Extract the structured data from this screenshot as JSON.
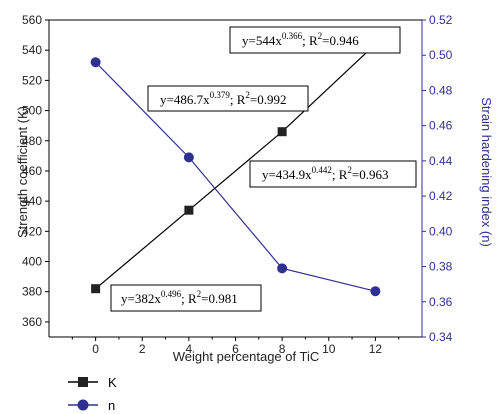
{
  "chart_data": {
    "type": "line",
    "xlabel": "Weight percentage of TiC",
    "ylabel_left": "Strength coefficient (K)",
    "ylabel_right": "Strain hardening index (n)",
    "x": [
      0,
      4,
      8,
      12
    ],
    "xlim": [
      -2,
      14
    ],
    "xticks": [
      "0",
      "2",
      "4",
      "6",
      "8",
      "10",
      "12"
    ],
    "ylim_left": [
      350,
      560
    ],
    "yticks_left": [
      "360",
      "380",
      "400",
      "420",
      "440",
      "460",
      "480",
      "500",
      "520",
      "540",
      "560"
    ],
    "ylim_right": [
      0.34,
      0.52
    ],
    "yticks_right": [
      "0.34",
      "0.36",
      "0.38",
      "0.40",
      "0.42",
      "0.44",
      "0.46",
      "0.48",
      "0.50",
      "0.52"
    ],
    "series": [
      {
        "name": "K",
        "axis": "left",
        "marker": "square",
        "color": "#000000",
        "values": [
          382,
          434,
          486,
          544
        ]
      },
      {
        "name": "n",
        "axis": "right",
        "marker": "circle",
        "color": "#2e3192",
        "values": [
          0.496,
          0.442,
          0.379,
          0.366
        ]
      }
    ],
    "annotations": [
      {
        "label": "y=544x",
        "power": "0.366",
        "rest": "; R",
        "sq": "2",
        "tail": "=0.946"
      },
      {
        "label": "y=486.7x",
        "power": "0.379",
        "rest": "; R",
        "sq": "2",
        "tail": "=0.992"
      },
      {
        "label": "y=434.9x",
        "power": "0.442",
        "rest": "; R",
        "sq": "2",
        "tail": "=0.963"
      },
      {
        "label": "y=382x",
        "power": "0.496",
        "rest": "; R",
        "sq": "2",
        "tail": "=0.981"
      }
    ],
    "right_axis_color": "#2e3192"
  }
}
